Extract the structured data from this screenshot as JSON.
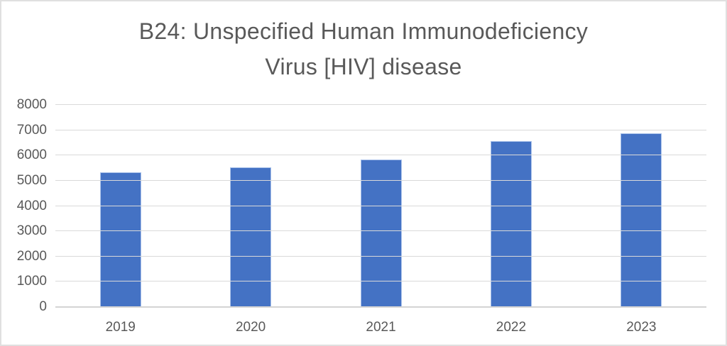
{
  "frame": {
    "background": "#ffffff",
    "border_color": "#e0e0e0"
  },
  "chart_data": {
    "type": "bar",
    "title": "B24: Unspecified Human Immunodeficiency Virus [HIV] disease",
    "title_lines": [
      "B24: Unspecified Human Immunodeficiency",
      "Virus [HIV] disease"
    ],
    "categories": [
      "2019",
      "2020",
      "2021",
      "2022",
      "2023"
    ],
    "values": [
      5320,
      5530,
      5850,
      6560,
      6890
    ],
    "xlabel": "",
    "ylabel": "",
    "ylim": [
      0,
      8000
    ],
    "ytick_step": 1000,
    "yticks": [
      8000,
      7000,
      6000,
      5000,
      4000,
      3000,
      2000,
      1000,
      0
    ],
    "grid": "horizontal-only",
    "legend_position": "none",
    "bar_color": "#4472c4",
    "bar_border_color": "#aac2ea",
    "gridline_color": "#d9d9d9",
    "axis_line_color": "#d4d4d4",
    "text_color": "#595959",
    "title_color": "#595959"
  }
}
